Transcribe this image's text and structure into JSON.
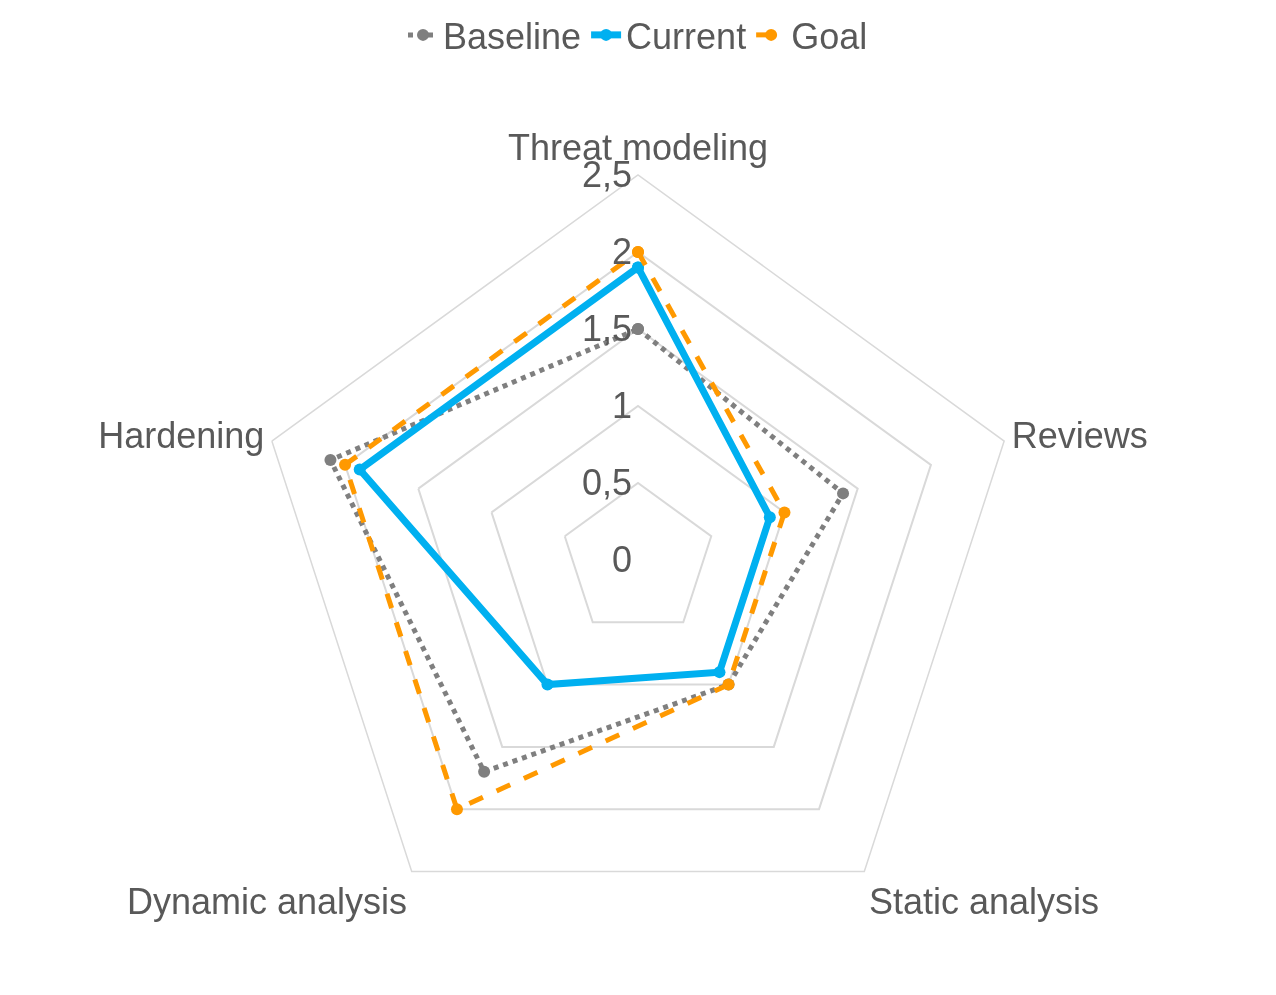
{
  "chart_data": {
    "type": "radar",
    "categories": [
      "Threat modeling",
      "Reviews",
      "Static analysis",
      "Dynamic analysis",
      "Hardening"
    ],
    "series": [
      {
        "name": "Baseline",
        "color": "#7f7f7f",
        "values": [
          1.5,
          1.4,
          1.0,
          1.7,
          2.1
        ],
        "line_style": "dotted"
      },
      {
        "name": "Current",
        "color": "#00b0f0",
        "values": [
          1.9,
          0.9,
          0.9,
          1.0,
          1.9
        ],
        "line_style": "solid"
      },
      {
        "name": "Goal",
        "color": "#ff9900",
        "values": [
          2.0,
          1.0,
          1.0,
          2.0,
          2.0
        ],
        "line_style": "dashed"
      }
    ],
    "ylim": [
      0,
      2.5
    ],
    "yticks": [
      0,
      {
        "value": 0.5,
        "label": "0,5"
      },
      1,
      {
        "value": 1.5,
        "label": "1,5"
      },
      2,
      {
        "value": 2.5,
        "label": "2,5"
      }
    ],
    "grid": true,
    "legend": "top",
    "marker": "circle"
  }
}
